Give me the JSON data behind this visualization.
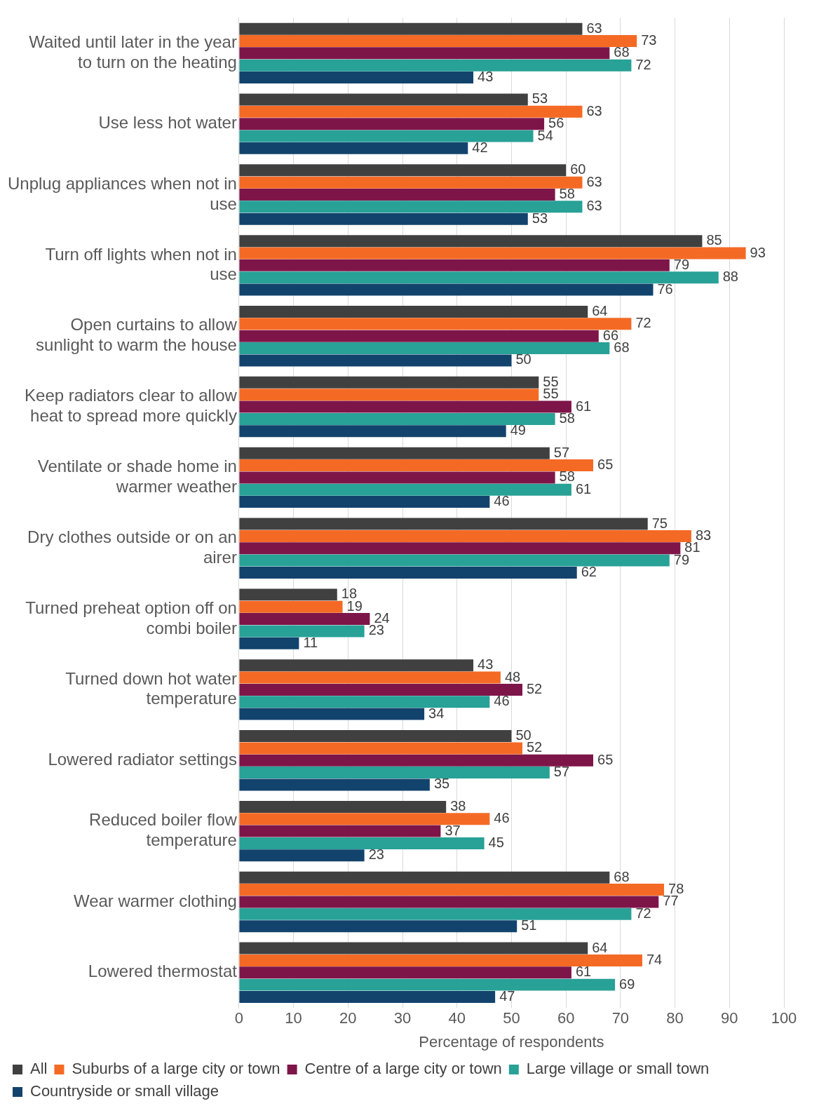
{
  "chart_data": {
    "type": "bar",
    "orientation": "horizontal",
    "xlabel": "Percentage of respondents",
    "categories": [
      "Waited until later in the year to turn on the heating",
      "Use less hot water",
      "Unplug appliances when not in use",
      "Turn off lights when not in use",
      "Open curtains to allow sunlight to warm the house",
      "Keep radiators clear to allow heat to spread more quickly",
      "Ventilate or shade home in warmer weather",
      "Dry clothes outside or on an airer",
      "Turned preheat option off on combi boiler",
      "Turned down hot water temperature",
      "Lowered radiator settings",
      "Reduced boiler flow temperature",
      "Wear warmer clothing",
      "Lowered thermostat"
    ],
    "series": [
      {
        "name": "All",
        "color": "#404040",
        "values": [
          63,
          53,
          60,
          85,
          64,
          55,
          57,
          75,
          18,
          43,
          50,
          38,
          68,
          64
        ]
      },
      {
        "name": "Suburbs of a large city or town",
        "color": "#f46a25",
        "values": [
          73,
          63,
          63,
          93,
          72,
          55,
          65,
          83,
          19,
          48,
          52,
          46,
          78,
          74
        ]
      },
      {
        "name": "Centre of a large city or town",
        "color": "#7e1549",
        "values": [
          68,
          56,
          58,
          79,
          66,
          61,
          58,
          81,
          24,
          52,
          65,
          37,
          77,
          61
        ]
      },
      {
        "name": "Large village or small town",
        "color": "#28a197",
        "values": [
          72,
          54,
          63,
          88,
          68,
          58,
          61,
          79,
          23,
          46,
          57,
          45,
          72,
          69
        ]
      },
      {
        "name": "Countryside or small village",
        "color": "#12436d",
        "values": [
          43,
          42,
          53,
          76,
          50,
          49,
          46,
          62,
          11,
          34,
          35,
          23,
          51,
          47
        ]
      }
    ],
    "xlim": [
      0,
      100
    ],
    "xticks": [
      0,
      10,
      20,
      30,
      40,
      50,
      60,
      70,
      80,
      90,
      100
    ],
    "grid": "x",
    "legend": "bottom",
    "data_labels": true
  }
}
